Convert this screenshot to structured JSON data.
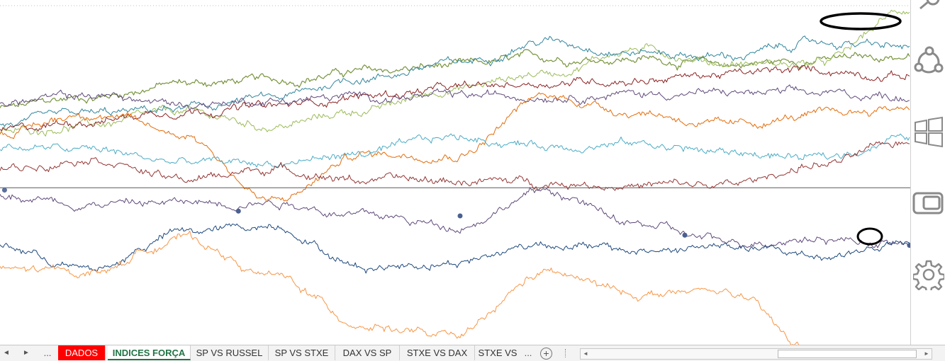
{
  "chart_data": {
    "type": "line",
    "title": "",
    "xlabel": "",
    "ylabel": "",
    "grid": false,
    "legend": "none",
    "x_points": 600,
    "ylim": [
      0,
      100
    ],
    "baseline_value": 46.3,
    "series": [
      {
        "color": "#77933c",
        "width": 1.2,
        "values": [
          69.8,
          73.1,
          77.1,
          78.0,
          80.5,
          82.2,
          84.6,
          84.4,
          82.6,
          84.1,
          85.1
        ]
      },
      {
        "color": "#9bbb59",
        "width": 1.0,
        "values": [
          62.5,
          64.9,
          68.5,
          64.4,
          69.1,
          75.7,
          80.2,
          87.2,
          83.1,
          82.8,
          99.0
        ]
      },
      {
        "color": "#31859c",
        "width": 1.0,
        "values": [
          64.7,
          67.9,
          69.5,
          72.7,
          78.8,
          82.9,
          89.6,
          86.4,
          85.0,
          89.2,
          87.6
        ]
      },
      {
        "color": "#8b2323",
        "width": 1.0,
        "values": [
          62.9,
          66.3,
          69.2,
          70.2,
          73.4,
          75.5,
          77.3,
          78.3,
          79.8,
          80.9,
          79.4
        ]
      },
      {
        "color": "#604a7b",
        "width": 1.0,
        "values": [
          71.4,
          73.5,
          70.9,
          72.1,
          73.1,
          73.1,
          73.7,
          74.0,
          74.2,
          73.9,
          73.3
        ]
      },
      {
        "color": "#e46c0a",
        "width": 1.0,
        "values": [
          62.0,
          68.5,
          62.4,
          42.0,
          56.3,
          56.2,
          73.2,
          68.7,
          64.4,
          67.6,
          70.1
        ]
      },
      {
        "color": "#4bacc6",
        "width": 1.0,
        "values": [
          58.4,
          57.4,
          53.8,
          53.5,
          56.4,
          61.1,
          58.8,
          59.4,
          56.7,
          54.9,
          61.2
        ]
      },
      {
        "color": "#943634",
        "width": 1.0,
        "values": [
          51.7,
          55.5,
          48.6,
          51.9,
          48.6,
          48.3,
          48.0,
          47.0,
          47.0,
          53.1,
          59.6
        ]
      },
      {
        "color": "#5f497a",
        "width": 1.0,
        "values": [
          44.4,
          41.7,
          41.9,
          42.3,
          38.1,
          35.1,
          45.3,
          35.4,
          30.3,
          31.6,
          29.6
        ]
      },
      {
        "color": "#1f497d",
        "width": 1.0,
        "values": [
          29.2,
          22.0,
          33.1,
          35.3,
          22.9,
          24.5,
          30.0,
          27.5,
          28.9,
          26.2,
          29.7
        ]
      },
      {
        "color": "#f79646",
        "width": 1.0,
        "values": [
          22.1,
          21.4,
          31.6,
          20.1,
          6.0,
          2.1,
          21.1,
          15.0,
          15.4,
          -3.3,
          null
        ]
      }
    ],
    "markers": [
      {
        "color": "#5a70a0",
        "x": 3,
        "value": 45.6
      },
      {
        "color": "#4a6090",
        "x": 157,
        "value": 39.4
      },
      {
        "color": "#4a6090",
        "x": 303,
        "value": 38.0
      },
      {
        "color": "#4a6090",
        "x": 451,
        "value": 32.3
      },
      {
        "color": "#4a6090",
        "x": 599,
        "value": 29.3
      }
    ],
    "annotations": [
      {
        "shape": "ellipse",
        "color": "#000000",
        "label": ""
      },
      {
        "shape": "ellipse",
        "color": "#000000",
        "label": ""
      }
    ]
  },
  "charm_bar": {
    "icons": [
      "search-icon",
      "share-icon",
      "windows-start-icon",
      "devices-icon",
      "settings-icon"
    ]
  },
  "sheet_tabs": {
    "nav_prev": "◄",
    "nav_next": "►",
    "more": "...",
    "tabs": [
      {
        "label": "DADOS",
        "style": "red"
      },
      {
        "label": "INDICES FORÇA",
        "style": "active"
      },
      {
        "label": "SP VS RUSSEL",
        "style": "normal"
      },
      {
        "label": "SP VS STXE",
        "style": "normal"
      },
      {
        "label": "DAX VS SP",
        "style": "normal"
      },
      {
        "label": "STXE VS DAX",
        "style": "normal"
      },
      {
        "label": "STXE VS",
        "style": "normal"
      }
    ],
    "tabs_more": "...",
    "add_sheet": "+",
    "scroll_left": "◄",
    "scroll_right": "►"
  }
}
